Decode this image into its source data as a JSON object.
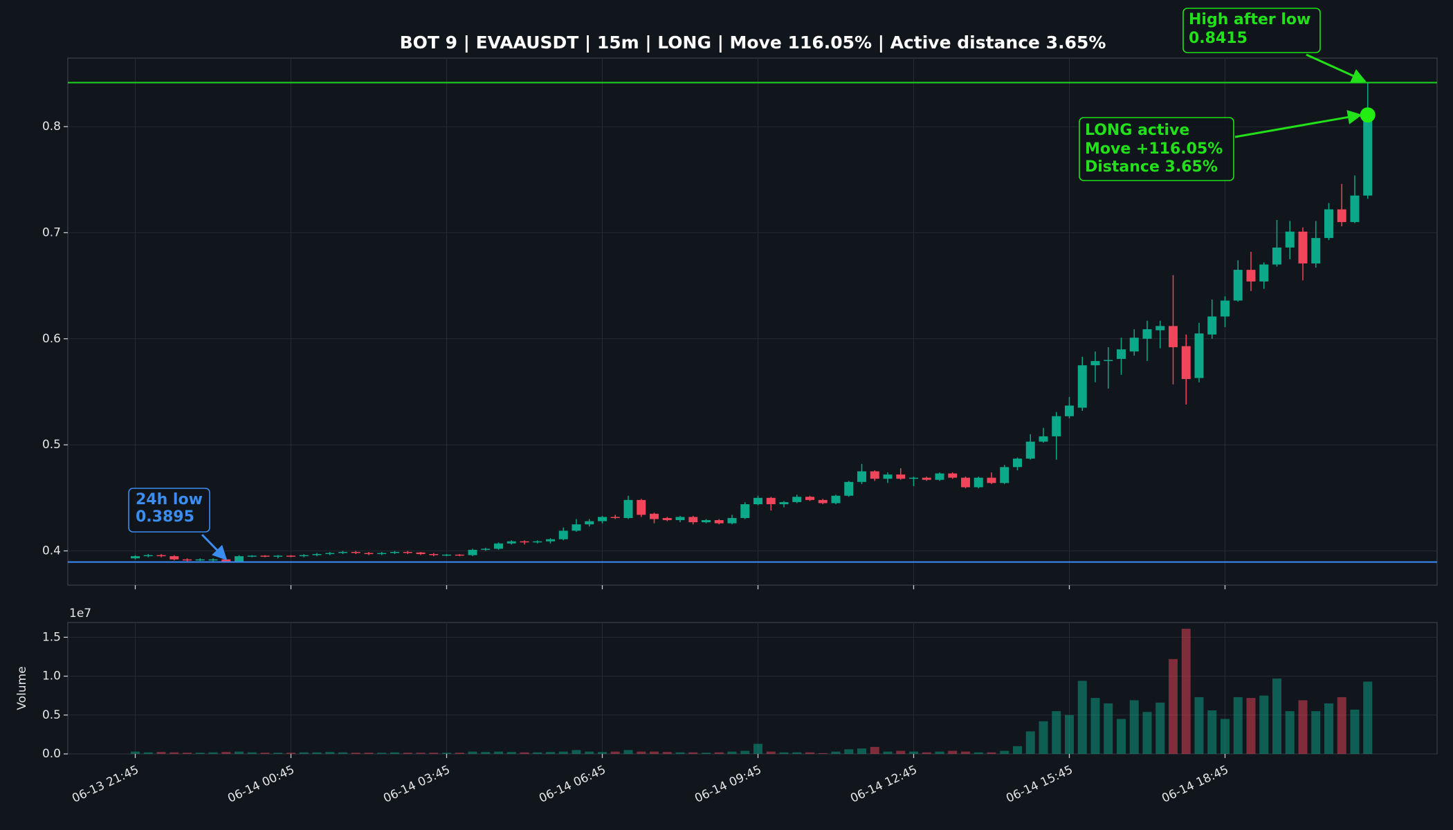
{
  "chart_data": {
    "type": "candlestick",
    "title": "BOT 9 | EVAAUSDT | 15m | LONG | Move 116.05% | Active distance 3.65%",
    "categories": [
      "06-13 21:45",
      null,
      null,
      null,
      null,
      null,
      null,
      null,
      null,
      null,
      null,
      null,
      "06-14 00:45",
      null,
      null,
      null,
      null,
      null,
      null,
      null,
      null,
      null,
      null,
      null,
      "06-14 03:45",
      null,
      null,
      null,
      null,
      null,
      null,
      null,
      null,
      null,
      null,
      null,
      "06-14 06:45",
      null,
      null,
      null,
      null,
      null,
      null,
      null,
      null,
      null,
      null,
      null,
      "06-14 09:45",
      null,
      null,
      null,
      null,
      null,
      null,
      null,
      null,
      null,
      null,
      null,
      "06-14 12:45",
      null,
      null,
      null,
      null,
      null,
      null,
      null,
      null,
      null,
      null,
      null,
      "06-14 15:45",
      null,
      null,
      null,
      null,
      null,
      null,
      null,
      null,
      null,
      null,
      null,
      "06-14 18:45",
      null,
      null,
      null,
      null,
      null,
      null,
      null,
      null,
      null,
      null,
      null
    ],
    "open": [
      0.393,
      0.395,
      0.396,
      0.395,
      0.392,
      0.391,
      0.391,
      0.392,
      0.39,
      0.395,
      0.3955,
      0.3945,
      0.3955,
      0.395,
      0.396,
      0.397,
      0.398,
      0.399,
      0.398,
      0.397,
      0.398,
      0.399,
      0.3985,
      0.397,
      0.396,
      0.3965,
      0.396,
      0.401,
      0.402,
      0.407,
      0.409,
      0.408,
      0.409,
      0.411,
      0.419,
      0.425,
      0.428,
      0.432,
      0.431,
      0.448,
      0.435,
      0.431,
      0.429,
      0.432,
      0.427,
      0.429,
      0.426,
      0.431,
      0.444,
      0.45,
      0.444,
      0.446,
      0.451,
      0.448,
      0.445,
      0.452,
      0.465,
      0.475,
      0.468,
      0.472,
      0.468,
      0.469,
      0.467,
      0.473,
      0.469,
      0.46,
      0.469,
      0.464,
      0.479,
      0.487,
      0.503,
      0.508,
      0.527,
      0.535,
      0.575,
      0.579,
      0.581,
      0.588,
      0.6,
      0.608,
      0.612,
      0.593,
      0.563,
      0.604,
      0.621,
      0.636,
      0.665,
      0.654,
      0.67,
      0.686,
      0.701,
      0.671,
      0.695,
      0.722,
      0.71,
      0.735
    ],
    "high": [
      0.396,
      0.397,
      0.397,
      0.396,
      0.393,
      0.393,
      0.393,
      0.393,
      0.396,
      0.396,
      0.396,
      0.396,
      0.396,
      0.397,
      0.398,
      0.399,
      0.4,
      0.4,
      0.399,
      0.399,
      0.4,
      0.4,
      0.399,
      0.398,
      0.397,
      0.397,
      0.402,
      0.403,
      0.408,
      0.41,
      0.41,
      0.41,
      0.412,
      0.422,
      0.43,
      0.43,
      0.433,
      0.434,
      0.452,
      0.449,
      0.436,
      0.432,
      0.433,
      0.433,
      0.43,
      0.43,
      0.434,
      0.446,
      0.452,
      0.451,
      0.447,
      0.453,
      0.452,
      0.449,
      0.453,
      0.466,
      0.482,
      0.476,
      0.474,
      0.478,
      0.47,
      0.47,
      0.474,
      0.474,
      0.47,
      0.47,
      0.474,
      0.481,
      0.488,
      0.51,
      0.516,
      0.531,
      0.545,
      0.583,
      0.588,
      0.592,
      0.601,
      0.609,
      0.617,
      0.617,
      0.66,
      0.604,
      0.615,
      0.637,
      0.64,
      0.674,
      0.682,
      0.672,
      0.712,
      0.711,
      0.705,
      0.711,
      0.728,
      0.746,
      0.754,
      0.8415
    ],
    "low": [
      0.392,
      0.394,
      0.394,
      0.391,
      0.39,
      0.3905,
      0.39,
      0.3895,
      0.3895,
      0.394,
      0.394,
      0.393,
      0.394,
      0.394,
      0.395,
      0.396,
      0.397,
      0.397,
      0.396,
      0.396,
      0.397,
      0.397,
      0.396,
      0.395,
      0.395,
      0.395,
      0.395,
      0.4,
      0.401,
      0.406,
      0.406,
      0.407,
      0.407,
      0.41,
      0.418,
      0.423,
      0.426,
      0.43,
      0.43,
      0.432,
      0.426,
      0.428,
      0.427,
      0.425,
      0.426,
      0.425,
      0.425,
      0.43,
      0.443,
      0.438,
      0.441,
      0.445,
      0.447,
      0.444,
      0.444,
      0.451,
      0.463,
      0.466,
      0.464,
      0.467,
      0.461,
      0.466,
      0.466,
      0.468,
      0.459,
      0.459,
      0.463,
      0.463,
      0.476,
      0.486,
      0.502,
      0.486,
      0.525,
      0.532,
      0.559,
      0.553,
      0.566,
      0.584,
      0.579,
      0.591,
      0.557,
      0.538,
      0.559,
      0.6,
      0.611,
      0.635,
      0.645,
      0.647,
      0.668,
      0.675,
      0.655,
      0.667,
      0.693,
      0.706,
      0.709,
      0.732
    ],
    "close": [
      0.395,
      0.396,
      0.395,
      0.392,
      0.391,
      0.392,
      0.392,
      0.39,
      0.395,
      0.3955,
      0.3945,
      0.3955,
      0.395,
      0.396,
      0.397,
      0.398,
      0.399,
      0.398,
      0.397,
      0.398,
      0.399,
      0.3985,
      0.397,
      0.396,
      0.3965,
      0.396,
      0.401,
      0.402,
      0.407,
      0.409,
      0.408,
      0.409,
      0.411,
      0.419,
      0.425,
      0.428,
      0.432,
      0.431,
      0.448,
      0.434,
      0.43,
      0.429,
      0.432,
      0.427,
      0.429,
      0.426,
      0.431,
      0.444,
      0.45,
      0.444,
      0.446,
      0.451,
      0.448,
      0.445,
      0.452,
      0.465,
      0.475,
      0.468,
      0.472,
      0.468,
      0.469,
      0.467,
      0.473,
      0.469,
      0.46,
      0.469,
      0.464,
      0.479,
      0.487,
      0.503,
      0.508,
      0.527,
      0.537,
      0.575,
      0.579,
      0.58,
      0.59,
      0.601,
      0.609,
      0.612,
      0.592,
      0.562,
      0.605,
      0.621,
      0.636,
      0.665,
      0.654,
      0.67,
      0.686,
      0.701,
      0.671,
      0.695,
      0.722,
      0.71,
      0.735,
      0.811
    ],
    "volume": [
      300000,
      200000,
      250000,
      200000,
      150000,
      150000,
      200000,
      250000,
      300000,
      200000,
      150000,
      150000,
      150000,
      200000,
      200000,
      250000,
      200000,
      150000,
      150000,
      150000,
      200000,
      150000,
      150000,
      150000,
      150000,
      150000,
      300000,
      250000,
      300000,
      250000,
      200000,
      200000,
      250000,
      300000,
      500000,
      300000,
      250000,
      300000,
      500000,
      300000,
      300000,
      250000,
      200000,
      200000,
      150000,
      200000,
      300000,
      400000,
      1300000,
      300000,
      200000,
      200000,
      200000,
      100000,
      300000,
      600000,
      700000,
      900000,
      300000,
      400000,
      300000,
      200000,
      300000,
      400000,
      300000,
      200000,
      200000,
      400000,
      1000000,
      2900000,
      4200000,
      5500000,
      5000000,
      9400000,
      7200000,
      6500000,
      4500000,
      6900000,
      5400000,
      6600000,
      12200000,
      16100000,
      7300000,
      5600000,
      4500000,
      7300000,
      7200000,
      7500000,
      9700000,
      5500000,
      6900000,
      5500000,
      6500000,
      7300000,
      5700000,
      9300000
    ],
    "up_color": "#0ba88a",
    "down_color": "#f0455a",
    "ylim": [
      0.3677,
      0.8646
    ],
    "yticks": [
      0.4,
      0.5,
      0.6,
      0.7,
      0.8
    ],
    "volume_label": "Volume",
    "volume_offset_label": "1e7",
    "volume_ylim": [
      0,
      16900000
    ],
    "volume_yticks": [
      {
        "value": 0,
        "label": "0.0"
      },
      {
        "value": 5000000,
        "label": "0.5"
      },
      {
        "value": 10000000,
        "label": "1.0"
      },
      {
        "value": 15000000,
        "label": "1.5"
      }
    ],
    "grid": true,
    "reference_lines": [
      {
        "value": 0.8415,
        "color": "#1fcf1f"
      },
      {
        "value": 0.3895,
        "color": "#3b86f0"
      }
    ],
    "marker_color": "#22ee11",
    "annotations": [
      {
        "lines": [
          "24h low",
          "0.3895"
        ],
        "color": "#3b8df0"
      },
      {
        "lines": [
          "High after low",
          "0.8415"
        ],
        "color": "#22e01a"
      },
      {
        "lines": [
          "LONG active",
          "Move +116.05%",
          "Distance 3.65%"
        ],
        "color": "#22e01a"
      }
    ]
  }
}
